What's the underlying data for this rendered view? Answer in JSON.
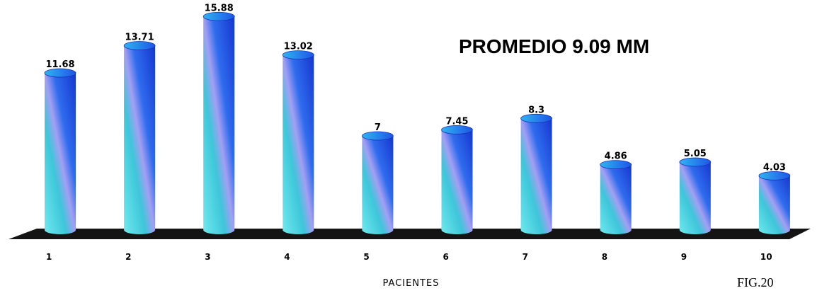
{
  "chart_data": {
    "type": "bar",
    "categories": [
      "1",
      "2",
      "3",
      "4",
      "5",
      "6",
      "7",
      "8",
      "9",
      "10"
    ],
    "values": [
      11.68,
      13.71,
      15.88,
      13.02,
      7,
      7.45,
      8.3,
      4.86,
      5.05,
      4.03
    ],
    "value_labels": [
      "11.68",
      "13.71",
      "15.88",
      "13.02",
      "7",
      "7.45",
      "8.3",
      "4.86",
      "5.05",
      "4.03"
    ],
    "annotation": "PROMEDIO 9.09 MM",
    "xlabel": "PACIENTES",
    "ylabel": "",
    "ylim": [
      0,
      16
    ],
    "grid": false,
    "legend": "none"
  },
  "figure_label": "FIG.20",
  "colors": {
    "bar_light": "#6fe9ee",
    "bar_mid": "#a49ff3",
    "bar_dark": "#1536cf",
    "bar_top": "#1e8df5",
    "floor": "#141414"
  }
}
